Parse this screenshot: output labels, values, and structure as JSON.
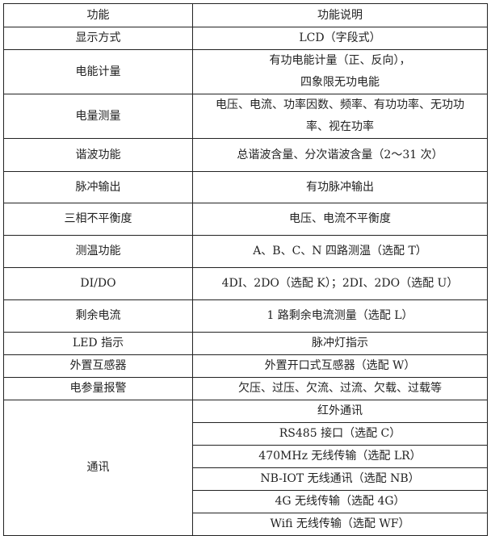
{
  "header": {
    "col1": "功能",
    "col2": "功能说明"
  },
  "rows": [
    {
      "feature": "显示方式",
      "desc": [
        "LCD（字段式）"
      ]
    },
    {
      "feature": "电能计量",
      "desc": [
        "有功电能计量（正、反向），",
        "四象限无功电能"
      ]
    },
    {
      "feature": "电量测量",
      "desc": [
        "电压、电流、功率因数、频率、有功功率、无功功",
        "率、视在功率"
      ]
    },
    {
      "feature": "谐波功能",
      "desc": [
        "总谐波含量、分次谐波含量（2～31 次）"
      ]
    },
    {
      "feature": "脉冲输出",
      "desc": [
        "有功脉冲输出"
      ]
    },
    {
      "feature": "三相不平衡度",
      "desc": [
        "电压、电流不平衡度"
      ]
    },
    {
      "feature": "测温功能",
      "desc": [
        "A、B、C、N 四路测温（选配 T）"
      ]
    },
    {
      "feature": "DI/DO",
      "desc": [
        "4DI、2DO（选配 K）；2DI、2DO（选配 U）"
      ]
    },
    {
      "feature": "剩余电流",
      "desc": [
        "1 路剩余电流测量（选配 L）"
      ]
    },
    {
      "feature": "LED 指示",
      "desc": [
        "脉冲灯指示"
      ]
    },
    {
      "feature": "外置互感器",
      "desc": [
        "外置开口式互感器（选配 W）"
      ]
    },
    {
      "feature": "电参量报警",
      "desc": [
        "欠压、过压、欠流、过流、欠载、过载等"
      ]
    }
  ],
  "comm": {
    "feature": "通讯",
    "items": [
      "红外通讯",
      "RS485 接口（选配 C）",
      "470MHz 无线传输（选配 LR）",
      "NB-IOT 无线通讯（选配 NB）",
      "4G 无线传输（选配 4G）",
      "Wifi 无线传输（选配 WF）"
    ]
  }
}
